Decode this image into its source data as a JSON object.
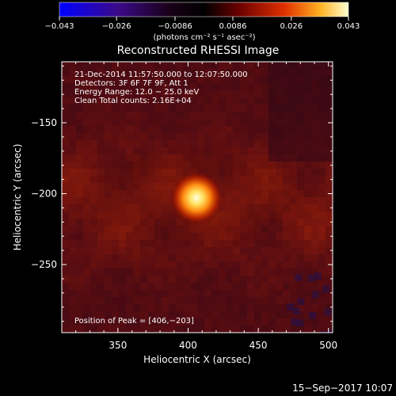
{
  "chart_data": {
    "type": "heatmap",
    "title": "Reconstructed RHESSI Image",
    "xlabel": "Heliocentric X (arcsec)",
    "ylabel": "Heliocentric Y (arcsec)",
    "xlim": [
      310,
      503
    ],
    "ylim": [
      -298,
      -107
    ],
    "x_ticks": [
      350,
      400,
      450,
      500
    ],
    "y_ticks": [
      -150,
      -200,
      -250
    ],
    "x_tick_labels": [
      "350",
      "400",
      "450",
      "500"
    ],
    "y_tick_labels": [
      "−150",
      "−200",
      "−250"
    ],
    "colorbar": {
      "min": -0.043,
      "max": 0.043,
      "ticks": [
        -0.043,
        -0.026,
        -0.0086,
        0.0086,
        0.026,
        0.043
      ],
      "tick_labels": [
        "−0.043",
        "−0.026",
        "−0.0086",
        "0.0086",
        "0.026",
        "0.043"
      ],
      "units": "(photons cm⁻² s⁻¹ asec⁻²)"
    },
    "peak": {
      "x": 406,
      "y": -203,
      "value": 0.043
    },
    "annotations": [
      "21-Dec-2014 11:57:50.000 to 12:07:50.000",
      "Detectors: 3F 6F 7F 9F, Att 1",
      "Energy Range: 12.0 − 25.0 keV",
      "Clean    Total counts: 2.16E+04"
    ],
    "peak_label": "Position of Peak = [406,−203]",
    "footer_timestamp": "15−Sep−2017 10:07"
  }
}
